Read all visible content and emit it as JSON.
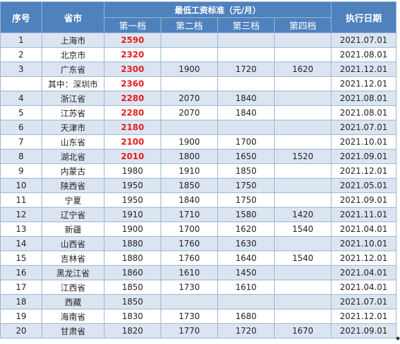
{
  "header": {
    "seq": "序号",
    "province": "省市",
    "standard": "最低工资标准（元/月）",
    "date": "执行日期",
    "tiers": [
      "第一档",
      "第二档",
      "第三档",
      "第四档"
    ]
  },
  "colors": {
    "header_bg": "#4f81bd",
    "stripe": "#dbe5f1",
    "highlight": "#e0201f"
  },
  "rows": [
    {
      "seq": "1",
      "name": "上海市",
      "t1": "2590",
      "t2": "",
      "t3": "",
      "t4": "",
      "date": "2021.07.01",
      "red": true
    },
    {
      "seq": "2",
      "name": "北京市",
      "t1": "2320",
      "t2": "",
      "t3": "",
      "t4": "",
      "date": "2021.08.01",
      "red": true
    },
    {
      "seq": "3",
      "name": "广东省",
      "t1": "2300",
      "t2": "1900",
      "t3": "1720",
      "t4": "1620",
      "date": "2021.12.01",
      "red": true
    },
    {
      "seq": "",
      "name": "其中：深圳市",
      "t1": "2360",
      "t2": "",
      "t3": "",
      "t4": "",
      "date": "2021.12.01",
      "red": true
    },
    {
      "seq": "4",
      "name": "浙江省",
      "t1": "2280",
      "t2": "2070",
      "t3": "1840",
      "t4": "",
      "date": "2021.08.01",
      "red": true
    },
    {
      "seq": "5",
      "name": "江苏省",
      "t1": "2280",
      "t2": "2070",
      "t3": "1840",
      "t4": "",
      "date": "2021.08.01",
      "red": true
    },
    {
      "seq": "6",
      "name": "天津市",
      "t1": "2180",
      "t2": "",
      "t3": "",
      "t4": "",
      "date": "2021.07.01",
      "red": true
    },
    {
      "seq": "7",
      "name": "山东省",
      "t1": "2100",
      "t2": "1900",
      "t3": "1700",
      "t4": "",
      "date": "2021.10.01",
      "red": true
    },
    {
      "seq": "8",
      "name": "湖北省",
      "t1": "2010",
      "t2": "1800",
      "t3": "1650",
      "t4": "1520",
      "date": "2021.09.01",
      "red": true
    },
    {
      "seq": "9",
      "name": "内蒙古",
      "t1": "1980",
      "t2": "1910",
      "t3": "1850",
      "t4": "",
      "date": "2021.12.01",
      "red": false
    },
    {
      "seq": "10",
      "name": "陕西省",
      "t1": "1950",
      "t2": "1850",
      "t3": "1750",
      "t4": "",
      "date": "2021.05.01",
      "red": false
    },
    {
      "seq": "11",
      "name": "宁夏",
      "t1": "1950",
      "t2": "1840",
      "t3": "1750",
      "t4": "",
      "date": "2021.09.01",
      "red": false
    },
    {
      "seq": "12",
      "name": "辽宁省",
      "t1": "1910",
      "t2": "1710",
      "t3": "1580",
      "t4": "1420",
      "date": "2021.11.01",
      "red": false
    },
    {
      "seq": "13",
      "name": "新疆",
      "t1": "1900",
      "t2": "1700",
      "t3": "1620",
      "t4": "1540",
      "date": "2021.04.01",
      "red": false
    },
    {
      "seq": "14",
      "name": "山西省",
      "t1": "1880",
      "t2": "1760",
      "t3": "1630",
      "t4": "",
      "date": "2021.10.01",
      "red": false
    },
    {
      "seq": "15",
      "name": "吉林省",
      "t1": "1880",
      "t2": "1760",
      "t3": "1640",
      "t4": "1540",
      "date": "2021.12.01",
      "red": false
    },
    {
      "seq": "16",
      "name": "黑龙江省",
      "t1": "1860",
      "t2": "1610",
      "t3": "1450",
      "t4": "",
      "date": "2021.04.01",
      "red": false
    },
    {
      "seq": "17",
      "name": "江西省",
      "t1": "1850",
      "t2": "1730",
      "t3": "1610",
      "t4": "",
      "date": "2021.04.01",
      "red": false
    },
    {
      "seq": "18",
      "name": "西藏",
      "t1": "1850",
      "t2": "",
      "t3": "",
      "t4": "",
      "date": "2021.07.01",
      "red": false
    },
    {
      "seq": "19",
      "name": "海南省",
      "t1": "1830",
      "t2": "1730",
      "t3": "1680",
      "t4": "",
      "date": "2021.12.01",
      "red": false
    },
    {
      "seq": "20",
      "name": "甘肃省",
      "t1": "1820",
      "t2": "1770",
      "t3": "1720",
      "t4": "1670",
      "date": "2021.09.01",
      "red": false
    }
  ]
}
